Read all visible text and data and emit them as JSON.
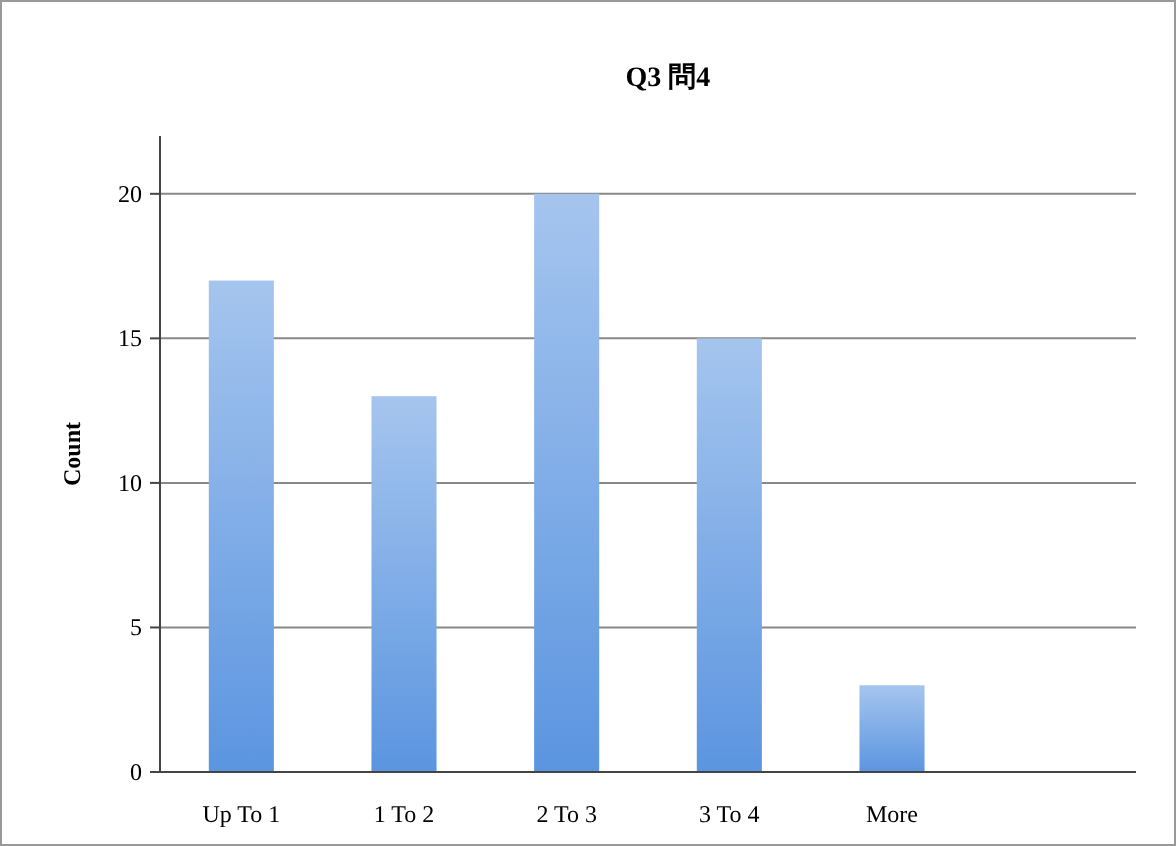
{
  "chart_data": {
    "type": "bar",
    "title": "Q3 問4",
    "ylabel": "Count",
    "categories": [
      "Up To 1",
      "1 To 2",
      "2 To 3",
      "3 To 4",
      "More",
      null
    ],
    "values": [
      17,
      13,
      20,
      15,
      3,
      null
    ],
    "color": "#5b95e0",
    "ylim": [
      0,
      22
    ],
    "yticks": [
      0,
      5,
      10,
      15,
      20
    ],
    "grid": "y"
  }
}
